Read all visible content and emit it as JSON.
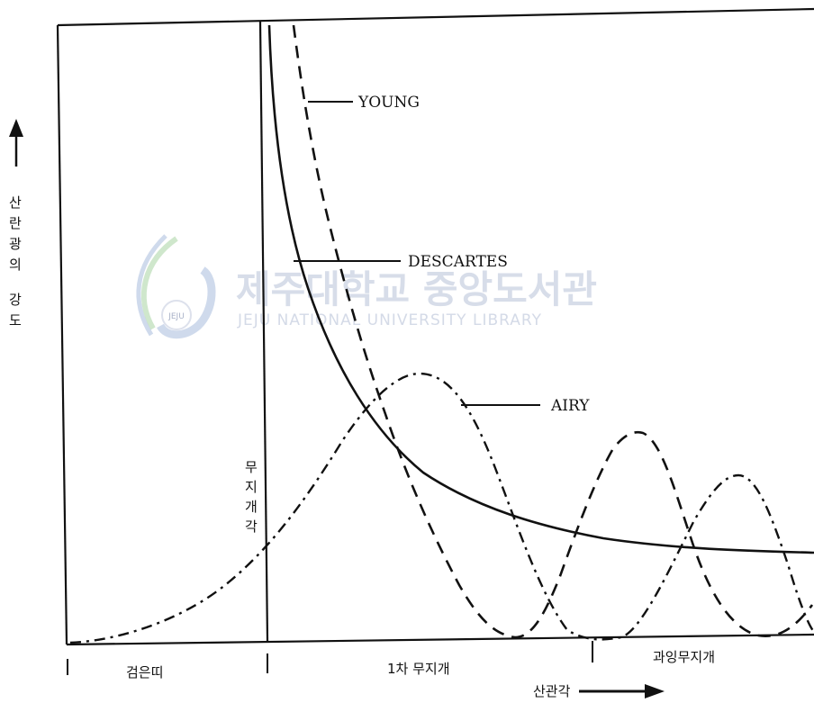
{
  "y_axis_label": [
    "산",
    "란",
    "광",
    "의",
    "강",
    "도"
  ],
  "rainbow_angle_label": [
    "무",
    "지",
    "개",
    "각"
  ],
  "curves": {
    "young": "YOUNG",
    "descartes": "DESCARTES",
    "airy": "AIRY"
  },
  "regions": {
    "dark_band": "검은띠",
    "primary_rainbow": "1차 무지개",
    "supernumerary": "과잉무지개"
  },
  "x_axis_label": "산관각",
  "watermark": {
    "korean": "제주대학교 중앙도서관",
    "english": "JEJU NATIONAL UNIVERSITY LIBRARY",
    "seal_text": "JEJU"
  },
  "colors": {
    "ink": "#111111",
    "watermark": "#b8c2d8",
    "watermark_green": "#9fcf9a"
  }
}
